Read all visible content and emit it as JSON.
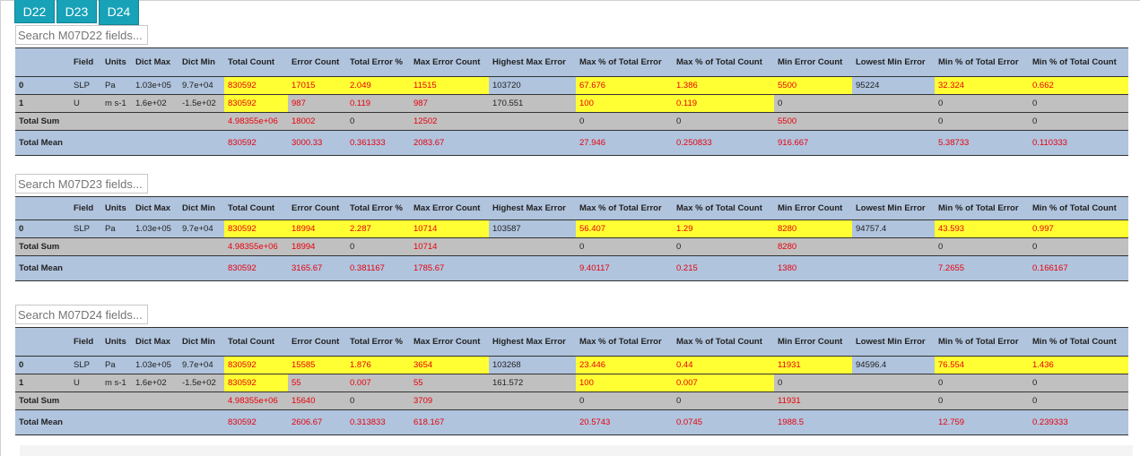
{
  "tabs": [
    "D22",
    "D23",
    "D24"
  ],
  "columns": [
    "",
    "Field",
    "Units",
    "Dict Max",
    "Dict Min",
    "Total Count",
    "Error Count",
    "Total Error %",
    "Max Error Count",
    "Highest Max Error",
    "Max % of Total Error",
    "Max % of Total Count",
    "Min Error Count",
    "Lowest Min Error",
    "Min % of Total Error",
    "Min % of Total Count"
  ],
  "colors": {
    "tab": "#17a2b8",
    "header_bg": "#b0c4de",
    "row_gray": "#c0c0c0",
    "highlight": "#ffff33",
    "value_red": "#e8000b"
  },
  "sections": [
    {
      "search_placeholder": "Search M07D22 fields...",
      "rows": [
        [
          "0",
          "SLP",
          "Pa",
          "1.03e+05",
          "9.7e+04",
          "830592",
          "17015",
          "2.049",
          "11515",
          "103720",
          "67.676",
          "1.386",
          "5500",
          "95224",
          "32.324",
          "0.662"
        ],
        [
          "1",
          "U",
          "m s-1",
          "1.6e+02",
          "-1.5e+02",
          "830592",
          "987",
          "0.119",
          "987",
          "170.551",
          "100",
          "0.119",
          "0",
          "",
          "0",
          "0"
        ],
        [
          "Total Sum",
          "",
          "",
          "",
          "",
          "4.98355e+06",
          "18002",
          "0",
          "12502",
          "",
          "0",
          "0",
          "5500",
          "",
          "0",
          "0"
        ],
        [
          "Total Mean",
          "",
          "",
          "",
          "",
          "830592",
          "3000.33",
          "0.361333",
          "2083.67",
          "",
          "27.946",
          "0.250833",
          "916.667",
          "",
          "5.38733",
          "0.110333"
        ]
      ]
    },
    {
      "search_placeholder": "Search M07D23 fields...",
      "rows": [
        [
          "0",
          "SLP",
          "Pa",
          "1.03e+05",
          "9.7e+04",
          "830592",
          "18994",
          "2.287",
          "10714",
          "103587",
          "56.407",
          "1.29",
          "8280",
          "94757.4",
          "43.593",
          "0.997"
        ],
        [
          "Total Sum",
          "",
          "",
          "",
          "",
          "4.98355e+06",
          "18994",
          "0",
          "10714",
          "",
          "0",
          "0",
          "8280",
          "",
          "0",
          "0"
        ],
        [
          "Total Mean",
          "",
          "",
          "",
          "",
          "830592",
          "3165.67",
          "0.381167",
          "1785.67",
          "",
          "9.40117",
          "0.215",
          "1380",
          "",
          "7.2655",
          "0.166167"
        ]
      ]
    },
    {
      "search_placeholder": "Search M07D24 fields...",
      "rows": [
        [
          "0",
          "SLP",
          "Pa",
          "1.03e+05",
          "9.7e+04",
          "830592",
          "15585",
          "1.876",
          "3654",
          "103268",
          "23.446",
          "0.44",
          "11931",
          "94596.4",
          "76.554",
          "1.436"
        ],
        [
          "1",
          "U",
          "m s-1",
          "1.6e+02",
          "-1.5e+02",
          "830592",
          "55",
          "0.007",
          "55",
          "161.572",
          "100",
          "0.007",
          "0",
          "",
          "0",
          "0"
        ],
        [
          "Total Sum",
          "",
          "",
          "",
          "",
          "4.98355e+06",
          "15640",
          "0",
          "3709",
          "",
          "0",
          "0",
          "11931",
          "",
          "0",
          "0"
        ],
        [
          "Total Mean",
          "",
          "",
          "",
          "",
          "830592",
          "2606.67",
          "0.313833",
          "618.167",
          "",
          "20.5743",
          "0.0745",
          "1988.5",
          "",
          "12.759",
          "0.239333"
        ]
      ]
    }
  ]
}
